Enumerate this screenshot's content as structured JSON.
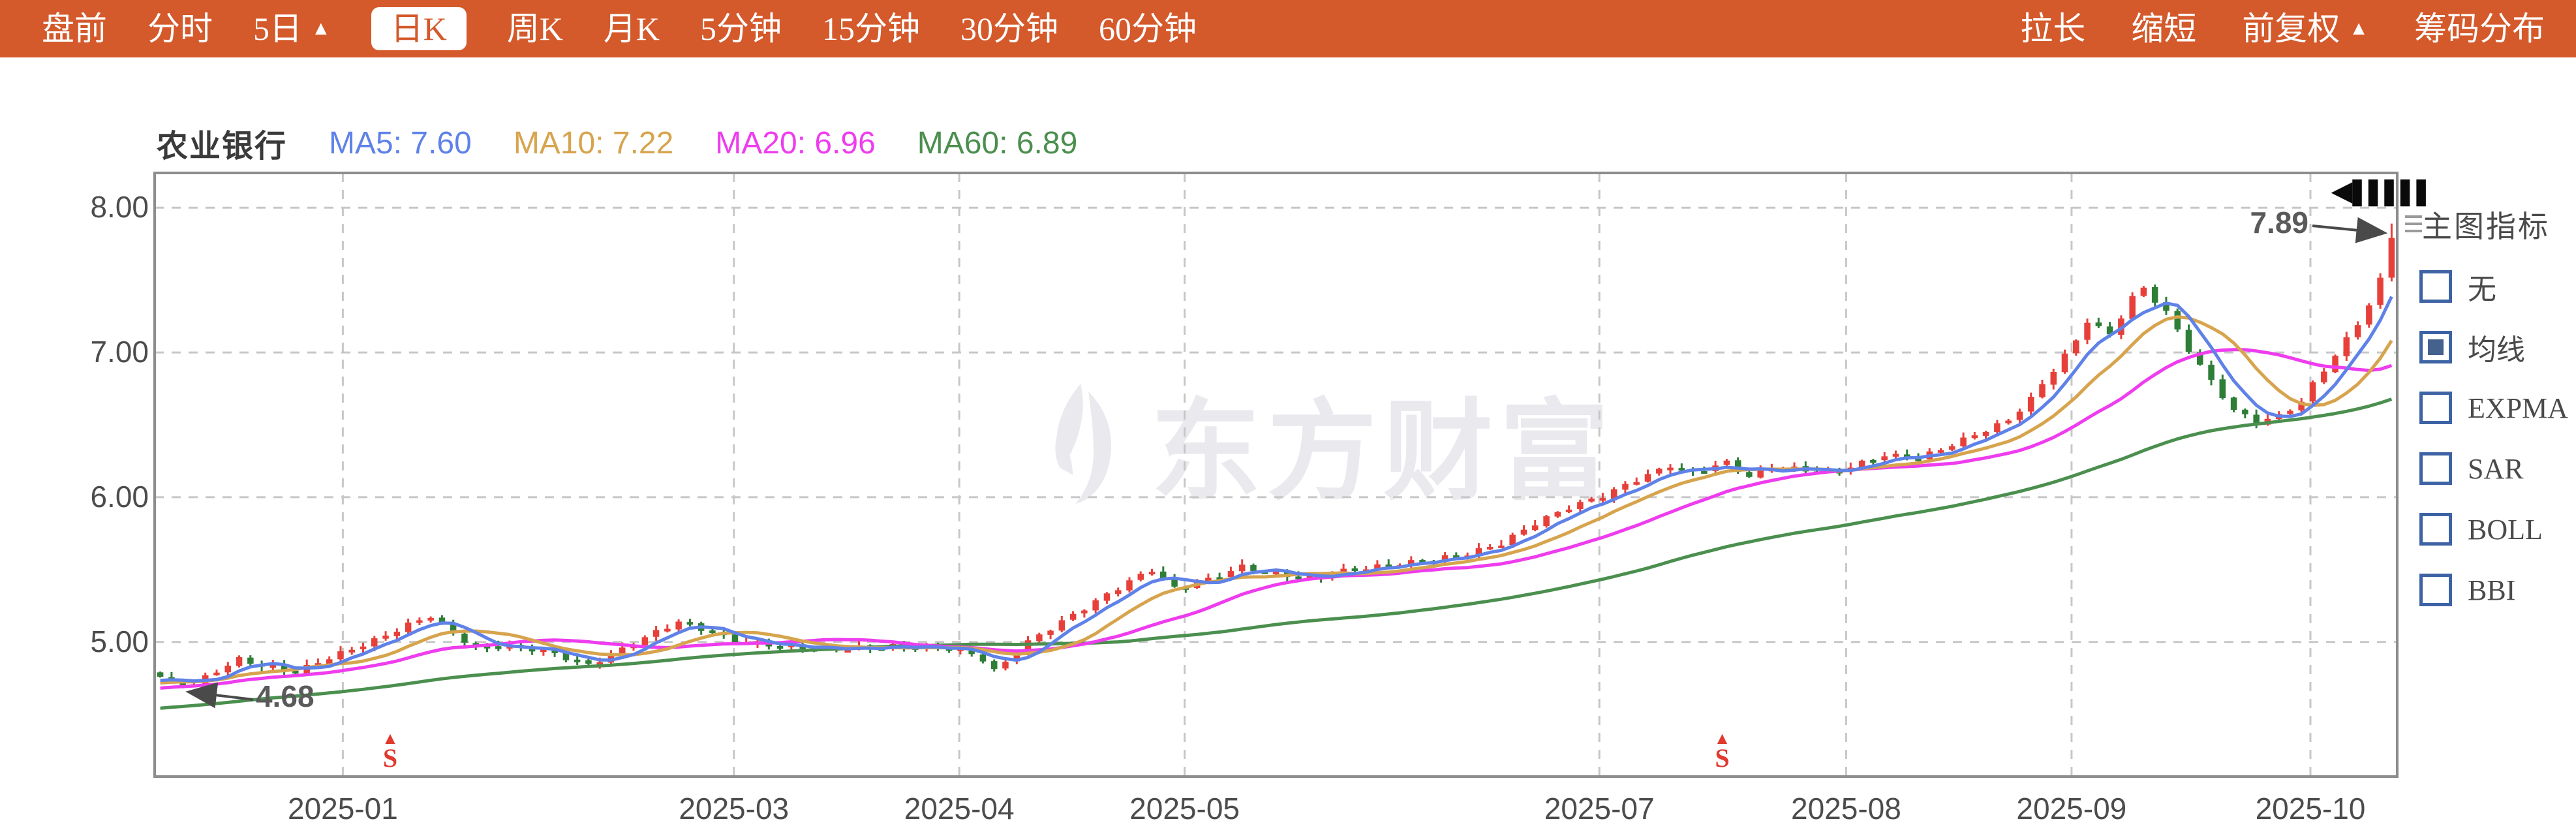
{
  "toolbar": {
    "bg_color": "#d4592b",
    "tabs": [
      {
        "id": "panqian",
        "label": "盘前"
      },
      {
        "id": "fenshi",
        "label": "分时"
      },
      {
        "id": "5ri",
        "label": "5日",
        "arrow": "▲"
      },
      {
        "id": "rik",
        "label": "日K",
        "selected": true
      },
      {
        "id": "zhouk",
        "label": "周K"
      },
      {
        "id": "yuek",
        "label": "月K"
      },
      {
        "id": "5fenzhong",
        "label": "5分钟"
      },
      {
        "id": "15fenzhong",
        "label": "15分钟"
      },
      {
        "id": "30fenzhong",
        "label": "30分钟"
      },
      {
        "id": "60fenzhong",
        "label": "60分钟"
      }
    ],
    "right_actions": [
      {
        "id": "lachang",
        "label": "拉长"
      },
      {
        "id": "suoduan",
        "label": "缩短"
      },
      {
        "id": "qianfuquan",
        "label": "前复权",
        "arrow": "▲"
      },
      {
        "id": "choumafenbu",
        "label": "筹码分布"
      }
    ]
  },
  "legend": {
    "stock_name": "农业银行",
    "items": [
      {
        "id": "ma5",
        "text": "MA5: 7.60",
        "color": "#5f82e8"
      },
      {
        "id": "ma10",
        "text": "MA10: 7.22",
        "color": "#d7a44e"
      },
      {
        "id": "ma20",
        "text": "MA20: 6.96",
        "color": "#ee3cee"
      },
      {
        "id": "ma60",
        "text": "MA60: 6.89",
        "color": "#4b8f4f"
      }
    ]
  },
  "sidebar": {
    "title": "主图指标",
    "checkbox_color": "#3d63a5",
    "options": [
      {
        "id": "none",
        "label": "无",
        "checked": false
      },
      {
        "id": "ma",
        "label": "均线",
        "checked": true
      },
      {
        "id": "expma",
        "label": "EXPMA",
        "checked": false
      },
      {
        "id": "sar",
        "label": "SAR",
        "checked": false
      },
      {
        "id": "boll",
        "label": "BOLL",
        "checked": false
      },
      {
        "id": "bbi",
        "label": "BBI",
        "checked": false
      }
    ]
  },
  "watermark": {
    "text": "东方财富"
  },
  "corner_glyph": "◀❚❚❚❚❚",
  "chart_data": {
    "type": "candlestick",
    "title": "农业银行 日K (前复权)",
    "num_candles": 199,
    "ylim": [
      4.07,
      8.24
    ],
    "grid": true,
    "yticks": [
      {
        "value": 8,
        "label": "8.00"
      },
      {
        "value": 7,
        "label": "7.00"
      },
      {
        "value": 6,
        "label": "6.00"
      },
      {
        "value": 5,
        "label": "5.00"
      }
    ],
    "xticks": [
      {
        "index": 16.2,
        "label": "2025-01"
      },
      {
        "index": 50.9,
        "label": "2025-03"
      },
      {
        "index": 70.9,
        "label": "2025-04"
      },
      {
        "index": 90.9,
        "label": "2025-05"
      },
      {
        "index": 127.7,
        "label": "2025-07"
      },
      {
        "index": 149.6,
        "label": "2025-08"
      },
      {
        "index": 169.6,
        "label": "2025-09"
      },
      {
        "index": 190.8,
        "label": "2025-10"
      }
    ],
    "close_keypoints": [
      [
        0,
        4.76
      ],
      [
        1,
        4.72
      ],
      [
        3,
        4.71
      ],
      [
        5,
        4.8
      ],
      [
        7,
        4.88
      ],
      [
        9,
        4.84
      ],
      [
        12,
        4.79
      ],
      [
        14,
        4.86
      ],
      [
        16,
        4.92
      ],
      [
        19,
        5.01
      ],
      [
        22,
        5.12
      ],
      [
        24,
        5.18
      ],
      [
        26,
        5.06
      ],
      [
        28,
        4.96
      ],
      [
        31,
        4.97
      ],
      [
        34,
        4.94
      ],
      [
        36,
        4.89
      ],
      [
        38,
        4.84
      ],
      [
        41,
        4.95
      ],
      [
        44,
        5.07
      ],
      [
        46,
        5.14
      ],
      [
        48,
        5.09
      ],
      [
        51,
        5.01
      ],
      [
        55,
        4.97
      ],
      [
        60,
        4.95
      ],
      [
        65,
        4.97
      ],
      [
        68,
        4.96
      ],
      [
        71,
        4.95
      ],
      [
        73,
        4.88
      ],
      [
        74,
        4.8
      ],
      [
        75,
        4.86
      ],
      [
        77,
        5.0
      ],
      [
        80,
        5.14
      ],
      [
        83,
        5.28
      ],
      [
        86,
        5.42
      ],
      [
        88,
        5.5
      ],
      [
        90,
        5.37
      ],
      [
        93,
        5.43
      ],
      [
        96,
        5.52
      ],
      [
        99,
        5.47
      ],
      [
        102,
        5.44
      ],
      [
        105,
        5.49
      ],
      [
        108,
        5.52
      ],
      [
        110,
        5.54
      ],
      [
        113,
        5.57
      ],
      [
        116,
        5.61
      ],
      [
        119,
        5.68
      ],
      [
        122,
        5.82
      ],
      [
        125,
        5.93
      ],
      [
        128,
        6.01
      ],
      [
        131,
        6.12
      ],
      [
        134,
        6.22
      ],
      [
        136,
        6.17
      ],
      [
        139,
        6.24
      ],
      [
        141,
        6.14
      ],
      [
        143,
        6.21
      ],
      [
        146,
        6.19
      ],
      [
        148,
        6.17
      ],
      [
        150,
        6.21
      ],
      [
        153,
        6.29
      ],
      [
        156,
        6.27
      ],
      [
        158,
        6.33
      ],
      [
        161,
        6.43
      ],
      [
        164,
        6.53
      ],
      [
        166,
        6.68
      ],
      [
        168,
        6.88
      ],
      [
        170,
        7.08
      ],
      [
        171,
        7.22
      ],
      [
        173,
        7.12
      ],
      [
        175,
        7.38
      ],
      [
        176,
        7.44
      ],
      [
        178,
        7.28
      ],
      [
        180,
        7.02
      ],
      [
        182,
        6.8
      ],
      [
        184,
        6.6
      ],
      [
        186,
        6.52
      ],
      [
        188,
        6.56
      ],
      [
        190,
        6.66
      ],
      [
        191,
        6.78
      ],
      [
        193,
        6.98
      ],
      [
        195,
        7.2
      ],
      [
        196,
        7.33
      ],
      [
        197,
        7.5
      ],
      [
        198,
        7.8
      ]
    ],
    "moving_averages": [
      {
        "name": "MA60",
        "period": 60,
        "key": "ma60"
      },
      {
        "name": "MA20",
        "period": 20,
        "key": "ma20"
      },
      {
        "name": "MA10",
        "period": 10,
        "key": "ma10"
      },
      {
        "name": "MA5",
        "period": 5,
        "key": "ma5"
      }
    ],
    "colors": {
      "up": "#e7403a",
      "down": "#2f7e38",
      "ma5": "#5f82e8",
      "ma10": "#d7a44e",
      "ma20": "#ee3cee",
      "ma60": "#4b8f4f",
      "grid": "#c7c7c7",
      "border": "#8d8d8d",
      "axis_text": "#4c4c4c"
    },
    "annotations": {
      "low": {
        "index": 2,
        "price": 4.68,
        "label": "4.68"
      },
      "high": {
        "index": 198,
        "price": 7.89,
        "label": "7.89"
      }
    },
    "event_markers": [
      {
        "index": 20.4,
        "symbol": "S"
      },
      {
        "index": 138.6,
        "symbol": "S"
      }
    ],
    "legend_position": "top-left"
  }
}
